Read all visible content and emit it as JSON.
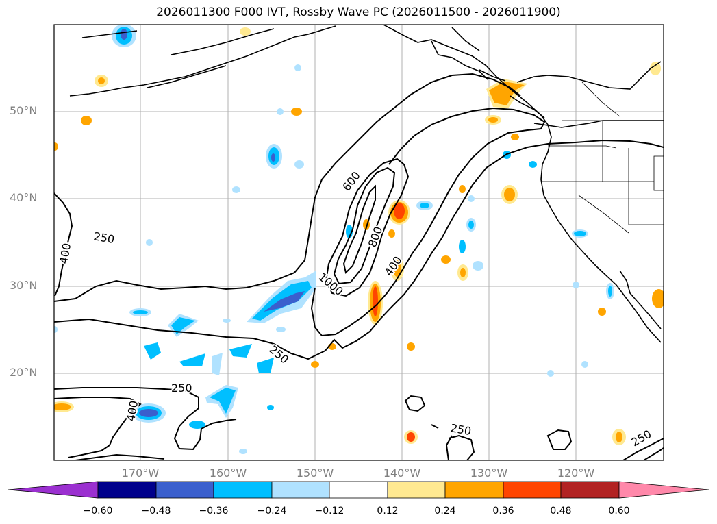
{
  "title": "2026011300 F000 IVT, Rossby Wave PC (2026011500 - 2026011900)",
  "lat_labels": [
    "50°N",
    "40°N",
    "30°N",
    "20°N"
  ],
  "lon_labels": [
    "170°W",
    "160°W",
    "150°W",
    "140°W",
    "130°W",
    "120°W"
  ],
  "contour_labels": [
    "250",
    "400",
    "600",
    "800",
    "1000",
    "400",
    "250",
    "250",
    "400",
    "250",
    "250"
  ],
  "colorbar": {
    "ticks": [
      "−0.60",
      "−0.48",
      "−0.36",
      "−0.24",
      "−0.12",
      "0.12",
      "0.24",
      "0.36",
      "0.48",
      "0.60"
    ],
    "colors": [
      "#9b30d0",
      "#00008b",
      "#3a5fcd",
      "#00bfff",
      "#b0e2ff",
      "#ffffff",
      "#ffe991",
      "#ffa500",
      "#ff4500",
      "#b22222",
      "#ff88aa"
    ]
  }
}
